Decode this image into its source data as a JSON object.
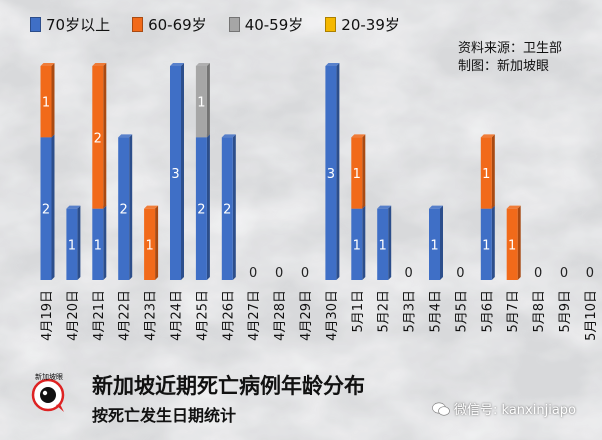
{
  "legend": [
    {
      "label": "70岁以上",
      "color": "#3f6fc6"
    },
    {
      "label": "60-69岁",
      "color": "#f16a1a"
    },
    {
      "label": "40-59岁",
      "color": "#a6a6a6"
    },
    {
      "label": "20-39岁",
      "color": "#f5b800"
    }
  ],
  "source": {
    "line1": "资料来源：卫生部",
    "line2": "制图：新加坡眼"
  },
  "footer": {
    "title": "新加坡近期死亡病例年龄分布",
    "subtitle": "按死亡发生日期统计",
    "watermark": "微信号: kanxinjiapo",
    "logo_text": "新加坡眼"
  },
  "colors": {
    "bg": "#dedfe0",
    "blue": "#3f6fc6",
    "orange": "#f16a1a",
    "gray": "#a6a6a6",
    "yellow": "#f5b800"
  },
  "chart_data": {
    "type": "bar",
    "stacked": true,
    "categories": [
      "4月19日",
      "4月20日",
      "4月21日",
      "4月22日",
      "4月23日",
      "4月24日",
      "4月25日",
      "4月26日",
      "4月27日",
      "4月28日",
      "4月29日",
      "4月30日",
      "5月1日",
      "5月2日",
      "5月3日",
      "5月4日",
      "5月5日",
      "5月6日",
      "5月7日",
      "5月8日",
      "5月9日",
      "5月10日"
    ],
    "series": [
      {
        "name": "70岁以上",
        "color": "#3f6fc6",
        "values": [
          2,
          1,
          1,
          2,
          0,
          3,
          2,
          2,
          0,
          0,
          0,
          3,
          1,
          1,
          0,
          1,
          0,
          1,
          0,
          0,
          0,
          0
        ]
      },
      {
        "name": "60-69岁",
        "color": "#f16a1a",
        "values": [
          1,
          0,
          2,
          0,
          1,
          0,
          0,
          0,
          0,
          0,
          0,
          0,
          1,
          0,
          0,
          0,
          0,
          1,
          1,
          0,
          0,
          0
        ]
      },
      {
        "name": "40-59岁",
        "color": "#a6a6a6",
        "values": [
          0,
          0,
          0,
          0,
          0,
          0,
          1,
          0,
          0,
          0,
          0,
          0,
          0,
          0,
          0,
          0,
          0,
          0,
          0,
          0,
          0,
          0
        ]
      },
      {
        "name": "20-39岁",
        "color": "#f5b800",
        "values": [
          0,
          0,
          0,
          0,
          0,
          0,
          0,
          0,
          0,
          0,
          0,
          0,
          0,
          0,
          0,
          0,
          0,
          0,
          0,
          0,
          0,
          0
        ]
      }
    ],
    "totals": [
      3,
      1,
      3,
      2,
      1,
      3,
      3,
      2,
      0,
      0,
      0,
      3,
      2,
      1,
      0,
      1,
      0,
      2,
      1,
      0,
      0,
      0
    ],
    "ylim": [
      0,
      3
    ],
    "grid": false,
    "legend_position": "top-left",
    "xlabel": "",
    "ylabel": ""
  }
}
